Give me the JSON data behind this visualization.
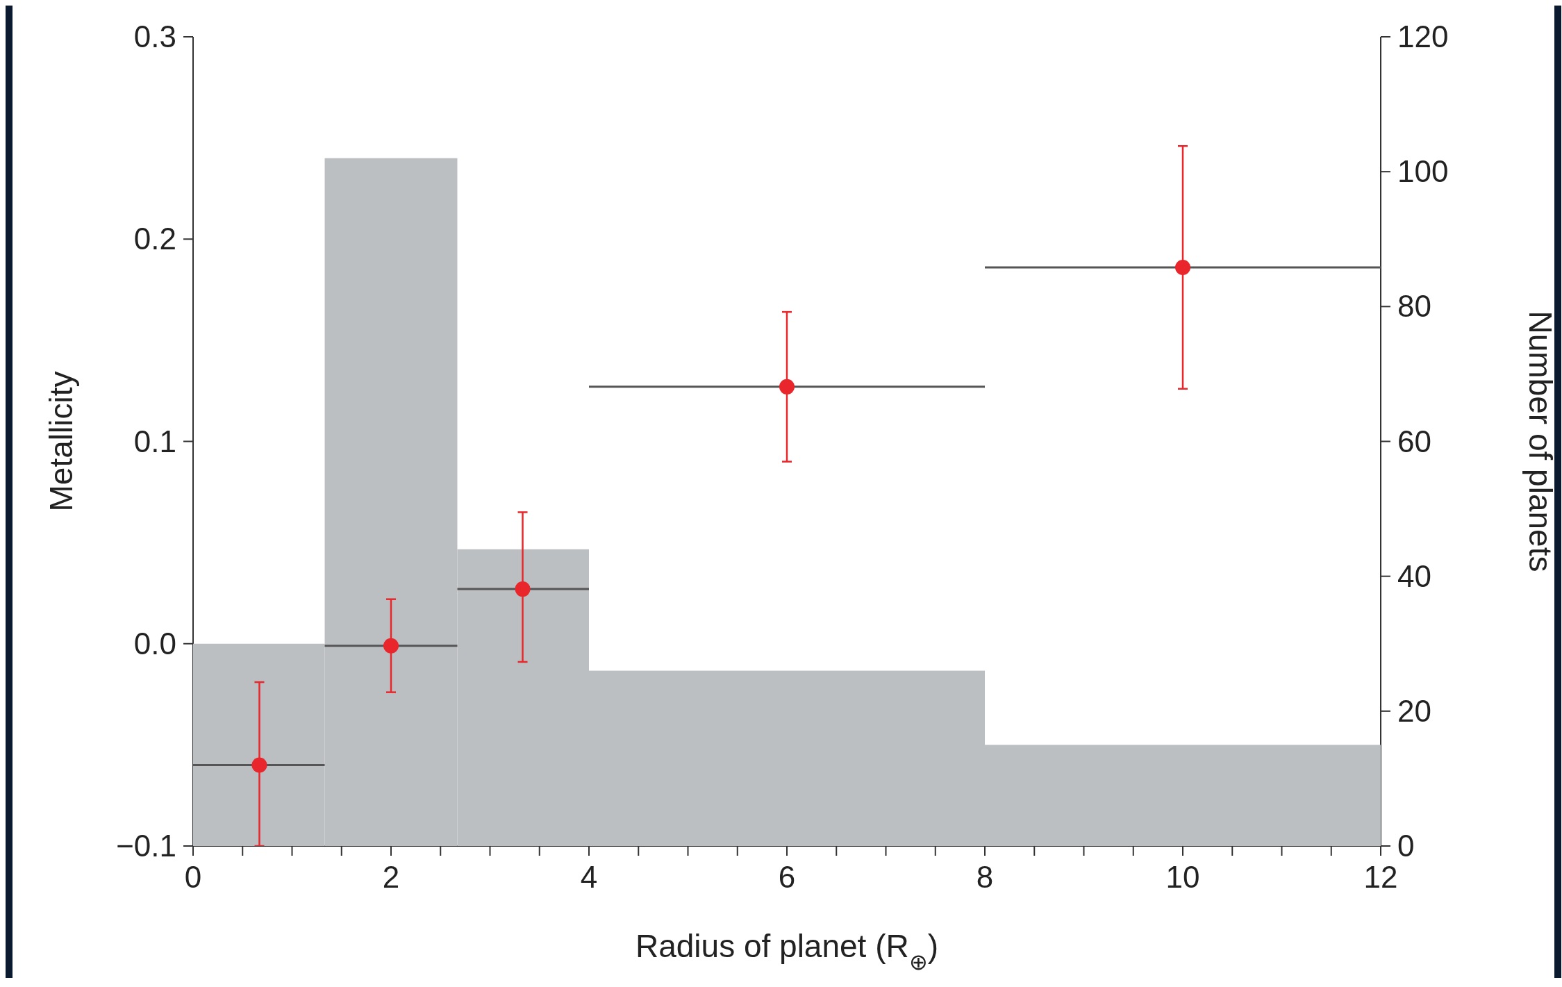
{
  "chart_data": {
    "type": "scatter",
    "xlabel": "Radius of planet (R$_{⊕}$)",
    "ylabel": "Metallicity",
    "y2label": "Number of planets",
    "xlim": [
      0,
      12
    ],
    "xticks": [
      0,
      {
        "value": 0.5,
        "label": null
      },
      {
        "value": 1,
        "label": null
      },
      {
        "value": 1.5,
        "label": null
      },
      2,
      {
        "value": 2.5,
        "label": null
      },
      {
        "value": 3,
        "label": null
      },
      {
        "value": 3.5,
        "label": null
      },
      4,
      {
        "value": 4.5,
        "label": null
      },
      {
        "value": 5,
        "label": null
      },
      {
        "value": 5.5,
        "label": null
      },
      6,
      {
        "value": 6.5,
        "label": null
      },
      {
        "value": 7,
        "label": null
      },
      {
        "value": 7.5,
        "label": null
      },
      8,
      {
        "value": 8.5,
        "label": null
      },
      {
        "value": 9,
        "label": null
      },
      {
        "value": 9.5,
        "label": null
      },
      10,
      {
        "value": 10.5,
        "label": null
      },
      {
        "value": 11,
        "label": null
      },
      {
        "value": 11.5,
        "label": null
      },
      12
    ],
    "ylim": [
      -0.1,
      0.3
    ],
    "yticks": [
      {
        "value": -0.1,
        "label": "−0.1"
      },
      {
        "value": 0,
        "label": "0.0"
      },
      0.1,
      0.2,
      0.3
    ],
    "y2lim": [
      0,
      120
    ],
    "y2ticks": [
      0,
      20,
      40,
      60,
      80,
      100,
      120
    ],
    "marker": "circle",
    "series": [
      {
        "type": "histogram",
        "axis": "y2",
        "color": "#bcbfc1",
        "bins": [
          0,
          1.33,
          2.67,
          4,
          8,
          12
        ],
        "values": [
          30,
          102,
          44,
          26,
          15
        ]
      },
      {
        "axis": "y",
        "color": "#e8262b",
        "x": [
          0.67,
          2,
          3.33,
          6,
          10
        ],
        "values": [
          -0.06,
          -0.001,
          0.027,
          0.127,
          0.186
        ],
        "errors": [
          [
            -0.1,
            -0.019
          ],
          [
            -0.024,
            0.022
          ],
          [
            -0.009,
            0.065
          ],
          [
            0.09,
            0.164
          ],
          [
            0.126,
            0.246
          ]
        ],
        "xerrors": [
          [
            0,
            1.33
          ],
          [
            1.33,
            2.67
          ],
          [
            2.67,
            4
          ],
          [
            4,
            8
          ],
          [
            8,
            12
          ]
        ]
      }
    ]
  }
}
